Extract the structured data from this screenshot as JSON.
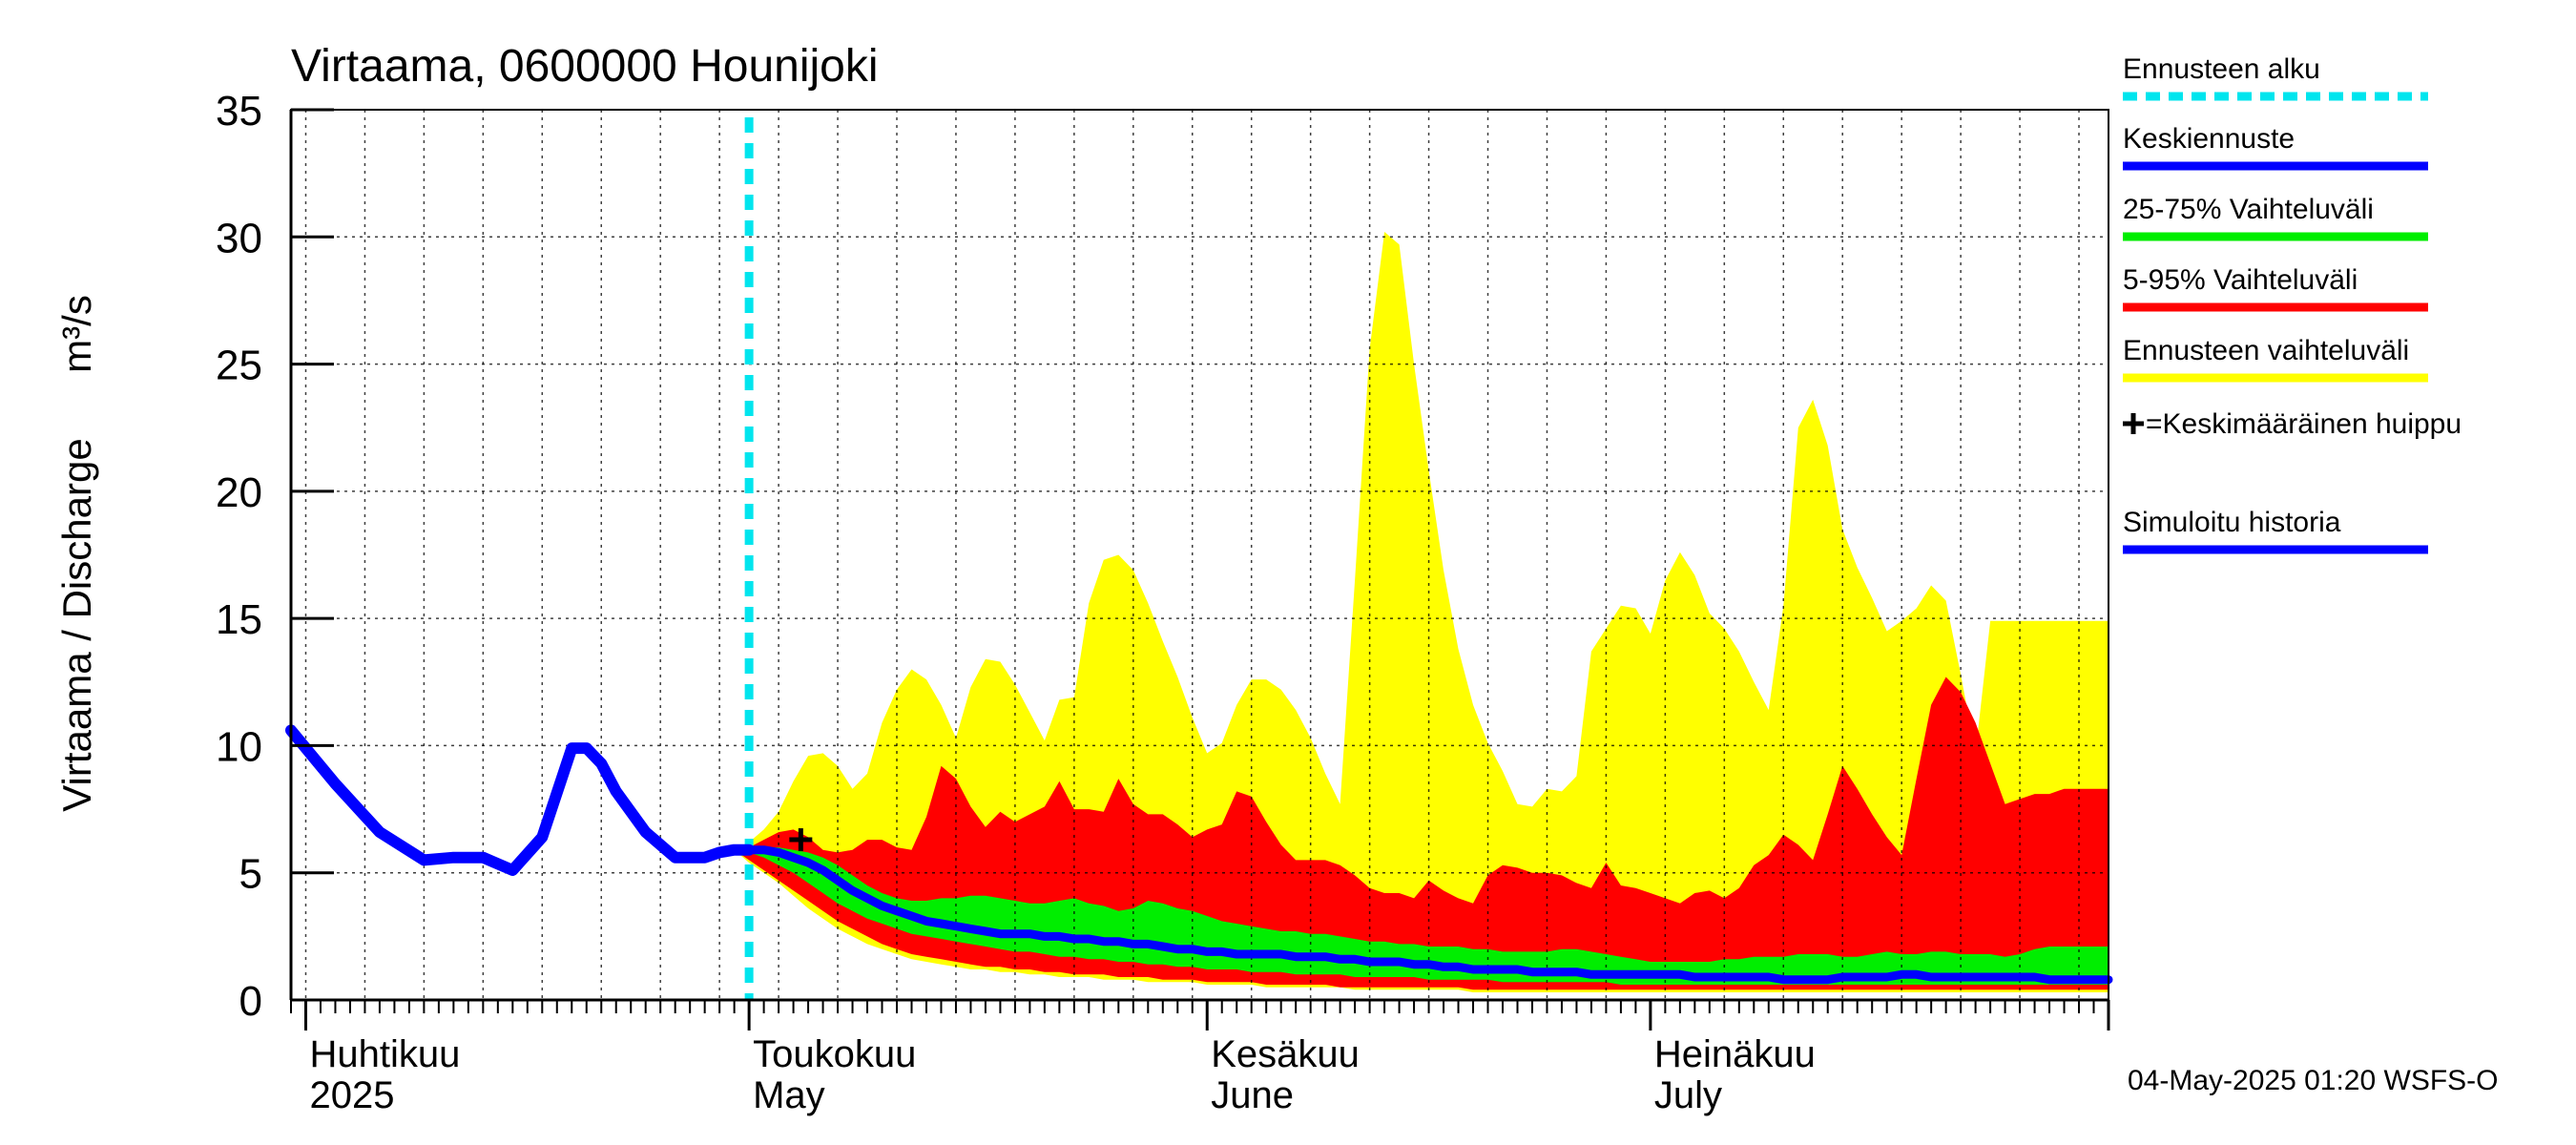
{
  "chart_data": {
    "type": "area",
    "title": "Virtaama, 0600000 Hounijoki",
    "ylabel": "Virtaama / Discharge",
    "yunit": "m³/s",
    "ylim": [
      0,
      35
    ],
    "yticks": [
      0,
      5,
      10,
      15,
      20,
      25,
      30,
      35
    ],
    "xlim": [
      0,
      123
    ],
    "x_month_labels": [
      {
        "day": 1,
        "fi": "Huhtikuu",
        "en": "2025"
      },
      {
        "day": 31,
        "fi": "Toukokuu",
        "en": "May"
      },
      {
        "day": 62,
        "fi": "Kesäkuu",
        "en": "June"
      },
      {
        "day": 92,
        "fi": "Heinäkuu",
        "en": "July"
      }
    ],
    "month_starts": [
      1,
      31,
      62,
      92,
      123
    ],
    "forecast_start_day": 31,
    "mean_peak": {
      "day": 34.5,
      "value": 6.3
    },
    "grid": true,
    "legend_position": "right",
    "legend": [
      {
        "label": "Ennusteen alku",
        "color": "#00e5ee",
        "style": "dashed"
      },
      {
        "label": "Keskiennuste",
        "color": "#0000ff",
        "style": "solid"
      },
      {
        "label": "25-75% Vaihteluväli",
        "color": "#00ee00",
        "style": "solid"
      },
      {
        "label": "5-95% Vaihteluväli",
        "color": "#ff0000",
        "style": "solid"
      },
      {
        "label": "Ennusteen vaihteluväli",
        "color": "#ffff00",
        "style": "solid"
      },
      {
        "label": "=Keskimääräinen huippu",
        "color": "#000000",
        "style": "marker"
      },
      {
        "label": "Simuloitu historia",
        "color": "#0000ff",
        "style": "solid"
      }
    ],
    "timestamp": "04-May-2025 01:20 WSFS-O",
    "series": [
      {
        "name": "Simuloitu historia",
        "color": "#0000ff",
        "x": [
          0,
          3,
          6,
          9,
          11,
          13,
          15,
          17,
          19,
          20,
          21,
          22,
          24,
          26,
          28,
          29,
          30,
          31
        ],
        "values": [
          10.6,
          8.5,
          6.6,
          5.5,
          5.6,
          5.6,
          5.1,
          6.4,
          9.9,
          9.9,
          9.3,
          8.2,
          6.6,
          5.6,
          5.6,
          5.8,
          5.9,
          5.9
        ]
      },
      {
        "name": "Ennusteen vaihteluväli",
        "color": "#ffff00",
        "x": [
          30,
          31,
          32,
          33,
          34,
          35,
          36,
          37,
          38,
          39,
          40,
          41,
          42,
          43,
          44,
          45,
          46,
          47,
          48,
          49,
          50,
          51,
          52,
          53,
          54,
          55,
          56,
          57,
          58,
          59,
          60,
          61,
          62,
          63,
          64,
          65,
          66,
          67,
          68,
          69,
          70,
          71,
          72,
          73,
          74,
          75,
          76,
          77,
          78,
          79,
          80,
          81,
          82,
          83,
          84,
          85,
          86,
          87,
          88,
          89,
          90,
          91,
          92,
          93,
          94,
          95,
          96,
          97,
          98,
          99,
          100,
          101,
          102,
          103,
          104,
          105,
          106,
          107,
          108,
          109,
          110,
          111,
          112,
          113,
          114,
          115,
          116,
          117,
          118,
          119,
          120,
          121,
          122,
          123
        ],
        "upper": [
          5.9,
          6.2,
          6.7,
          7.4,
          8.6,
          9.6,
          9.7,
          9.2,
          8.3,
          8.9,
          10.9,
          12.2,
          13.0,
          12.6,
          11.6,
          10.3,
          12.3,
          13.4,
          13.3,
          12.4,
          11.3,
          10.2,
          11.8,
          11.9,
          15.6,
          17.3,
          17.5,
          16.9,
          15.6,
          14.1,
          12.7,
          11.1,
          9.7,
          10.1,
          11.6,
          12.6,
          12.6,
          12.2,
          11.4,
          10.3,
          8.9,
          7.7,
          16.5,
          25.6,
          30.2,
          29.7,
          25.0,
          20.8,
          16.9,
          13.8,
          11.6,
          10.1,
          9.0,
          7.7,
          7.6,
          8.3,
          8.2,
          8.8,
          13.7,
          14.6,
          15.5,
          15.4,
          14.4,
          16.5,
          17.6,
          16.7,
          15.2,
          14.6,
          13.7,
          12.5,
          11.4,
          15.5,
          22.5,
          23.6,
          21.8,
          18.5,
          17.0,
          15.8,
          14.5,
          14.9,
          15.4,
          16.3,
          15.7,
          12.8,
          9.7,
          14.9,
          14.9,
          14.9,
          14.9,
          14.9,
          14.9,
          14.9,
          14.9,
          14.9
        ],
        "lower": [
          5.9,
          5.4,
          5.0,
          4.6,
          4.1,
          3.6,
          3.2,
          2.8,
          2.5,
          2.2,
          2.0,
          1.8,
          1.6,
          1.5,
          1.4,
          1.3,
          1.2,
          1.2,
          1.1,
          1.1,
          1.0,
          1.0,
          0.9,
          0.9,
          0.9,
          0.8,
          0.8,
          0.8,
          0.7,
          0.7,
          0.7,
          0.7,
          0.6,
          0.6,
          0.6,
          0.6,
          0.5,
          0.5,
          0.5,
          0.5,
          0.5,
          0.5,
          0.4,
          0.4,
          0.4,
          0.4,
          0.4,
          0.4,
          0.4,
          0.4,
          0.3,
          0.3,
          0.3,
          0.3,
          0.3,
          0.3,
          0.3,
          0.3,
          0.3,
          0.3,
          0.3,
          0.3,
          0.3,
          0.3,
          0.3,
          0.3,
          0.3,
          0.3,
          0.3,
          0.3,
          0.3,
          0.3,
          0.3,
          0.3,
          0.3,
          0.3,
          0.3,
          0.3,
          0.3,
          0.3,
          0.3,
          0.3,
          0.3,
          0.3,
          0.3,
          0.3,
          0.3,
          0.3,
          0.3,
          0.3,
          0.3,
          0.3,
          0.3,
          0.3
        ]
      },
      {
        "name": "5-95% Vaihteluväli",
        "color": "#ff0000",
        "x": [
          30,
          31,
          32,
          33,
          34,
          35,
          36,
          37,
          38,
          39,
          40,
          41,
          42,
          43,
          44,
          45,
          46,
          47,
          48,
          49,
          50,
          51,
          52,
          53,
          54,
          55,
          56,
          57,
          58,
          59,
          60,
          61,
          62,
          63,
          64,
          65,
          66,
          67,
          68,
          69,
          70,
          71,
          72,
          73,
          74,
          75,
          76,
          77,
          78,
          79,
          80,
          81,
          82,
          83,
          84,
          85,
          86,
          87,
          88,
          89,
          90,
          91,
          92,
          93,
          94,
          95,
          96,
          97,
          98,
          99,
          100,
          101,
          102,
          103,
          104,
          105,
          106,
          107,
          108,
          109,
          110,
          111,
          112,
          113,
          114,
          115,
          116,
          117,
          118,
          119,
          120,
          121,
          122,
          123
        ],
        "upper": [
          5.9,
          6.0,
          6.3,
          6.6,
          6.7,
          6.4,
          5.9,
          5.8,
          5.9,
          6.3,
          6.3,
          6.0,
          5.9,
          7.2,
          9.2,
          8.7,
          7.6,
          6.8,
          7.4,
          7.0,
          7.3,
          7.6,
          8.6,
          7.5,
          7.5,
          7.4,
          8.7,
          7.7,
          7.3,
          7.3,
          6.9,
          6.4,
          6.7,
          6.9,
          8.2,
          8.0,
          7.0,
          6.1,
          5.5,
          5.5,
          5.5,
          5.3,
          4.9,
          4.4,
          4.2,
          4.2,
          4.0,
          4.7,
          4.3,
          4.0,
          3.8,
          4.9,
          5.3,
          5.2,
          5.0,
          5.0,
          4.9,
          4.6,
          4.4,
          5.4,
          4.5,
          4.4,
          4.2,
          4.0,
          3.8,
          4.2,
          4.3,
          4.0,
          4.4,
          5.3,
          5.7,
          6.5,
          6.1,
          5.5,
          7.3,
          9.2,
          8.3,
          7.3,
          6.4,
          5.7,
          8.7,
          11.6,
          12.7,
          12.1,
          10.9,
          9.3,
          7.7,
          7.9,
          8.1,
          8.1,
          8.3,
          8.3,
          8.3,
          8.3
        ],
        "lower": [
          5.9,
          5.5,
          5.1,
          4.7,
          4.3,
          3.9,
          3.5,
          3.1,
          2.8,
          2.5,
          2.2,
          2.0,
          1.8,
          1.7,
          1.6,
          1.5,
          1.4,
          1.3,
          1.3,
          1.2,
          1.2,
          1.1,
          1.1,
          1.0,
          1.0,
          1.0,
          0.9,
          0.9,
          0.9,
          0.8,
          0.8,
          0.8,
          0.7,
          0.7,
          0.7,
          0.7,
          0.6,
          0.6,
          0.6,
          0.6,
          0.6,
          0.5,
          0.5,
          0.5,
          0.5,
          0.5,
          0.5,
          0.5,
          0.5,
          0.5,
          0.4,
          0.4,
          0.4,
          0.4,
          0.4,
          0.4,
          0.4,
          0.4,
          0.4,
          0.4,
          0.4,
          0.4,
          0.4,
          0.4,
          0.4,
          0.4,
          0.4,
          0.4,
          0.4,
          0.4,
          0.4,
          0.4,
          0.4,
          0.4,
          0.4,
          0.4,
          0.4,
          0.4,
          0.4,
          0.4,
          0.4,
          0.4,
          0.4,
          0.4,
          0.4,
          0.4,
          0.4,
          0.4,
          0.4,
          0.4,
          0.4,
          0.4,
          0.4,
          0.4
        ]
      },
      {
        "name": "25-75% Vaihteluväli",
        "color": "#00ee00",
        "x": [
          30,
          31,
          32,
          33,
          34,
          35,
          36,
          37,
          38,
          39,
          40,
          41,
          42,
          43,
          44,
          45,
          46,
          47,
          48,
          49,
          50,
          51,
          52,
          53,
          54,
          55,
          56,
          57,
          58,
          59,
          60,
          61,
          62,
          63,
          64,
          65,
          66,
          67,
          68,
          69,
          70,
          71,
          72,
          73,
          74,
          75,
          76,
          77,
          78,
          79,
          80,
          81,
          82,
          83,
          84,
          85,
          86,
          87,
          88,
          89,
          90,
          91,
          92,
          93,
          94,
          95,
          96,
          97,
          98,
          99,
          100,
          101,
          102,
          103,
          104,
          105,
          106,
          107,
          108,
          109,
          110,
          111,
          112,
          113,
          114,
          115,
          116,
          117,
          118,
          119,
          120,
          121,
          122,
          123
        ],
        "upper": [
          5.9,
          5.9,
          6.0,
          6.0,
          5.9,
          5.8,
          5.6,
          5.3,
          4.9,
          4.5,
          4.2,
          4.0,
          3.9,
          3.9,
          4.0,
          4.0,
          4.1,
          4.1,
          4.0,
          3.9,
          3.8,
          3.8,
          3.9,
          4.0,
          3.8,
          3.7,
          3.5,
          3.6,
          3.9,
          3.8,
          3.6,
          3.5,
          3.3,
          3.1,
          3.0,
          2.9,
          2.8,
          2.7,
          2.7,
          2.6,
          2.6,
          2.5,
          2.4,
          2.3,
          2.3,
          2.2,
          2.2,
          2.1,
          2.1,
          2.1,
          2.0,
          2.0,
          1.9,
          1.9,
          1.9,
          1.9,
          2.0,
          2.0,
          1.9,
          1.8,
          1.7,
          1.6,
          1.5,
          1.5,
          1.5,
          1.5,
          1.5,
          1.6,
          1.6,
          1.7,
          1.7,
          1.7,
          1.8,
          1.8,
          1.8,
          1.7,
          1.7,
          1.8,
          1.9,
          1.8,
          1.8,
          1.9,
          1.9,
          1.8,
          1.8,
          1.8,
          1.7,
          1.8,
          2.0,
          2.1,
          2.1,
          2.1,
          2.1,
          2.1
        ],
        "lower": [
          5.9,
          5.8,
          5.6,
          5.3,
          5.0,
          4.6,
          4.2,
          3.8,
          3.5,
          3.2,
          3.0,
          2.8,
          2.6,
          2.5,
          2.4,
          2.3,
          2.2,
          2.1,
          2.0,
          1.9,
          1.9,
          1.8,
          1.7,
          1.7,
          1.6,
          1.6,
          1.5,
          1.5,
          1.4,
          1.4,
          1.3,
          1.3,
          1.2,
          1.2,
          1.2,
          1.1,
          1.1,
          1.1,
          1.0,
          1.0,
          1.0,
          1.0,
          0.9,
          0.9,
          0.9,
          0.9,
          0.9,
          0.8,
          0.8,
          0.8,
          0.8,
          0.8,
          0.7,
          0.7,
          0.7,
          0.7,
          0.7,
          0.7,
          0.7,
          0.7,
          0.6,
          0.6,
          0.6,
          0.6,
          0.6,
          0.6,
          0.6,
          0.6,
          0.6,
          0.6,
          0.6,
          0.6,
          0.6,
          0.6,
          0.6,
          0.6,
          0.6,
          0.6,
          0.6,
          0.6,
          0.6,
          0.6,
          0.6,
          0.6,
          0.6,
          0.6,
          0.6,
          0.6,
          0.6,
          0.6,
          0.6,
          0.6,
          0.6,
          0.6
        ]
      },
      {
        "name": "Keskiennuste",
        "color": "#0000ff",
        "x": [
          30,
          31,
          32,
          33,
          34,
          35,
          36,
          37,
          38,
          39,
          40,
          41,
          42,
          43,
          44,
          45,
          46,
          47,
          48,
          49,
          50,
          51,
          52,
          53,
          54,
          55,
          56,
          57,
          58,
          59,
          60,
          61,
          62,
          63,
          64,
          65,
          66,
          67,
          68,
          69,
          70,
          71,
          72,
          73,
          74,
          75,
          76,
          77,
          78,
          79,
          80,
          81,
          82,
          83,
          84,
          85,
          86,
          87,
          88,
          89,
          90,
          91,
          92,
          93,
          94,
          95,
          96,
          97,
          98,
          99,
          100,
          101,
          102,
          103,
          104,
          105,
          106,
          107,
          108,
          109,
          110,
          111,
          112,
          113,
          114,
          115,
          116,
          117,
          118,
          119,
          120,
          121,
          122,
          123
        ],
        "values": [
          5.9,
          5.9,
          5.9,
          5.8,
          5.6,
          5.4,
          5.1,
          4.7,
          4.3,
          4.0,
          3.7,
          3.5,
          3.3,
          3.1,
          3.0,
          2.9,
          2.8,
          2.7,
          2.6,
          2.6,
          2.6,
          2.5,
          2.5,
          2.4,
          2.4,
          2.3,
          2.3,
          2.2,
          2.2,
          2.1,
          2.0,
          2.0,
          1.9,
          1.9,
          1.8,
          1.8,
          1.8,
          1.8,
          1.7,
          1.7,
          1.7,
          1.6,
          1.6,
          1.5,
          1.5,
          1.5,
          1.4,
          1.4,
          1.3,
          1.3,
          1.2,
          1.2,
          1.2,
          1.2,
          1.1,
          1.1,
          1.1,
          1.1,
          1.0,
          1.0,
          1.0,
          1.0,
          1.0,
          1.0,
          1.0,
          0.9,
          0.9,
          0.9,
          0.9,
          0.9,
          0.9,
          0.8,
          0.8,
          0.8,
          0.8,
          0.9,
          0.9,
          0.9,
          0.9,
          1.0,
          1.0,
          0.9,
          0.9,
          0.9,
          0.9,
          0.9,
          0.9,
          0.9,
          0.9,
          0.8,
          0.8,
          0.8,
          0.8,
          0.8
        ]
      }
    ]
  }
}
